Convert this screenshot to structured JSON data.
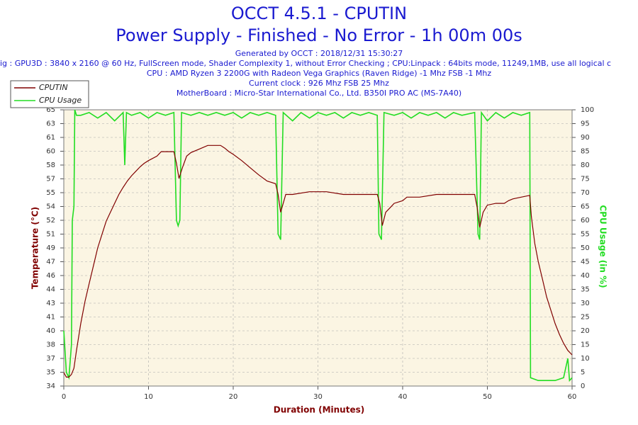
{
  "chart_data": {
    "type": "line",
    "title": "OCCT 4.5.1 - CPUTIN",
    "subtitle": "Power Supply - Finished - No Error - 1h 00m 00s",
    "info_lines": [
      "Generated by OCCT : 2018/12/31 15:30:27",
      "ig : GPU3D : 3840 x 2160 @ 60 Hz, FullScreen mode, Shader Complexity 1, without Error Checking ; CPU:Linpack : 64bits mode, 11249,1MB, use all logical c",
      "CPU : AMD Ryzen 3 2200G with Radeon Vega Graphics (Raven Ridge) -1 Mhz FSB -1 Mhz",
      "Current clock : 926 Mhz FSB 25 Mhz",
      "MotherBoard : Micro-Star International Co., Ltd. B350I PRO AC (MS-7A40)"
    ],
    "xlabel": "Duration (Minutes)",
    "ylabel": "Temperature (°C)",
    "y2label": "CPU Usage (in %)",
    "xlim": [
      0,
      60
    ],
    "xticks": [
      0,
      10,
      20,
      30,
      40,
      50,
      60
    ],
    "ylim": [
      34,
      65
    ],
    "yticks": [
      34,
      {
        "value": 35.55,
        "label": "35"
      },
      {
        "value": 37.1,
        "label": "37"
      },
      {
        "value": 38.65,
        "label": "38"
      },
      {
        "value": 40.2,
        "label": "40"
      },
      {
        "value": 41.75,
        "label": "41"
      },
      {
        "value": 43.3,
        "label": "43"
      },
      {
        "value": 44.85,
        "label": "44"
      },
      {
        "value": 46.4,
        "label": "46"
      },
      {
        "value": 47.95,
        "label": "47"
      },
      {
        "value": 49.5,
        "label": "49"
      },
      {
        "value": 51.05,
        "label": "51"
      },
      {
        "value": 52.6,
        "label": "52"
      },
      {
        "value": 54.15,
        "label": "54"
      },
      {
        "value": 55.7,
        "label": "55"
      },
      {
        "value": 57.25,
        "label": "57"
      },
      {
        "value": 58.8,
        "label": "58"
      },
      {
        "value": 60.35,
        "label": "60"
      },
      {
        "value": 61.9,
        "label": "61"
      },
      {
        "value": 63.45,
        "label": "63"
      },
      65
    ],
    "y2lim": [
      0,
      100
    ],
    "y2ticks": [
      0,
      5,
      10,
      15,
      20,
      25,
      30,
      35,
      40,
      45,
      50,
      55,
      60,
      65,
      70,
      75,
      80,
      85,
      90,
      95,
      100
    ],
    "grid": true,
    "legend": "top-left",
    "series": [
      {
        "name": "CPUTIN",
        "color": "#800000",
        "x": [
          0,
          0.3,
          0.6,
          0.9,
          1.2,
          1.5,
          2,
          2.5,
          3,
          3.5,
          4,
          4.5,
          5,
          5.5,
          6,
          6.5,
          7,
          7.5,
          8,
          8.5,
          9,
          9.5,
          10,
          11,
          11.5,
          12.5,
          13,
          13.3,
          13.6,
          14,
          14.5,
          15,
          16,
          17,
          18,
          18.5,
          19,
          19.5,
          20,
          21,
          22,
          23,
          24,
          25,
          25.3,
          25.6,
          25.9,
          26.2,
          27,
          29,
          31,
          33,
          37,
          37.3,
          37.6,
          38,
          38.5,
          39,
          40,
          40.5,
          42,
          44,
          48.5,
          48.8,
          49.1,
          49.5,
          50,
          51,
          52,
          52.5,
          53,
          54,
          55,
          55.2,
          55.6,
          56,
          56.5,
          57,
          57.5,
          58,
          58.5,
          59,
          59.5,
          60
        ],
        "values": [
          35.5,
          35,
          35,
          35.3,
          36,
          38,
          41,
          43.5,
          45.5,
          47.5,
          49.5,
          51,
          52.5,
          53.5,
          54.5,
          55.5,
          56.3,
          57,
          57.6,
          58.1,
          58.6,
          59,
          59.3,
          59.8,
          60.3,
          60.3,
          60.3,
          59,
          57.3,
          58.5,
          59.8,
          60.2,
          60.6,
          61,
          61,
          61,
          60.7,
          60.3,
          60,
          59.3,
          58.5,
          57.7,
          57,
          56.7,
          55.5,
          53.5,
          54.5,
          55.5,
          55.5,
          55.8,
          55.8,
          55.5,
          55.5,
          54.5,
          52,
          53.5,
          54,
          54.5,
          54.8,
          55.2,
          55.2,
          55.5,
          55.5,
          54,
          51.8,
          53.5,
          54.3,
          54.5,
          54.5,
          54.8,
          55,
          55.2,
          55.4,
          53,
          50,
          48,
          46,
          44,
          42.5,
          41,
          39.8,
          38.8,
          38,
          37.5
        ]
      },
      {
        "name": "CPU Usage",
        "color": "#22dd22",
        "axis": "y2",
        "x": [
          0,
          0.3,
          0.6,
          0.9,
          1,
          1.2,
          1.3,
          1.5,
          2,
          3,
          4,
          5,
          6,
          7,
          7.2,
          7.4,
          8,
          9,
          10,
          11,
          12,
          13,
          13.3,
          13.5,
          13.7,
          13.9,
          15,
          16,
          17,
          18,
          19,
          20,
          21,
          22,
          23,
          24,
          25,
          25.3,
          25.6,
          25.9,
          27,
          28,
          29,
          30,
          31,
          32,
          33,
          34,
          35,
          36,
          37,
          37.2,
          37.5,
          37.8,
          39,
          40,
          41,
          42,
          43,
          44,
          45,
          46,
          47,
          48.5,
          48.9,
          49.1,
          49.3,
          50,
          51,
          52,
          53,
          54,
          55,
          55.1,
          56,
          57,
          58,
          59,
          59.5,
          59.7,
          60
        ],
        "values": [
          20,
          5,
          3,
          15,
          60,
          65,
          100,
          98,
          98,
          99,
          97,
          99,
          96,
          99,
          80,
          99,
          98,
          99,
          97,
          99,
          98,
          99,
          60,
          58,
          60,
          99,
          98,
          99,
          98,
          99,
          98,
          99,
          97,
          99,
          98,
          99,
          98,
          55,
          53,
          99,
          96,
          99,
          97,
          99,
          98,
          99,
          97,
          99,
          98,
          99,
          98,
          55,
          53,
          99,
          98,
          99,
          97,
          99,
          98,
          99,
          97,
          99,
          98,
          99,
          55,
          53,
          99,
          96,
          99,
          97,
          99,
          98,
          99,
          3,
          2,
          2,
          2,
          3,
          10,
          2,
          3
        ]
      }
    ]
  }
}
